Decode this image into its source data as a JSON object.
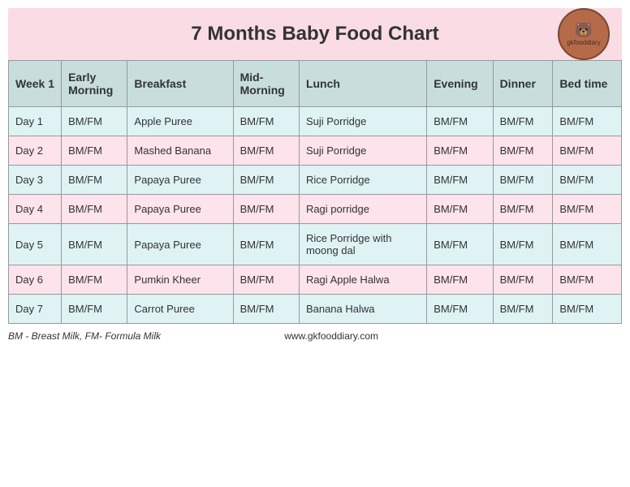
{
  "title": "7 Months Baby Food Chart",
  "logo": {
    "brand": "gkfooddiary",
    "bear": "🐻"
  },
  "columns": [
    "Week 1",
    "Early Morning",
    "Breakfast",
    "Mid-Morning",
    "Lunch",
    "Evening",
    "Dinner",
    "Bed time"
  ],
  "rows": [
    {
      "day": "Day 1",
      "early": "BM/FM",
      "breakfast": "Apple Puree",
      "mid": "BM/FM",
      "lunch": "Suji Porridge",
      "evening": "BM/FM",
      "dinner": "BM/FM",
      "bed": "BM/FM"
    },
    {
      "day": "Day 2",
      "early": "BM/FM",
      "breakfast": "Mashed Banana",
      "mid": "BM/FM",
      "lunch": "Suji Porridge",
      "evening": "BM/FM",
      "dinner": "BM/FM",
      "bed": "BM/FM"
    },
    {
      "day": "Day 3",
      "early": "BM/FM",
      "breakfast": "Papaya Puree",
      "mid": "BM/FM",
      "lunch": "Rice Porridge",
      "evening": "BM/FM",
      "dinner": "BM/FM",
      "bed": "BM/FM"
    },
    {
      "day": "Day 4",
      "early": "BM/FM",
      "breakfast": "Papaya Puree",
      "mid": "BM/FM",
      "lunch": "Ragi porridge",
      "evening": "BM/FM",
      "dinner": "BM/FM",
      "bed": "BM/FM"
    },
    {
      "day": "Day 5",
      "early": "BM/FM",
      "breakfast": "Papaya Puree",
      "mid": "BM/FM",
      "lunch": "Rice Porridge with moong dal",
      "evening": "BM/FM",
      "dinner": "BM/FM",
      "bed": "BM/FM"
    },
    {
      "day": "Day 6",
      "early": "BM/FM",
      "breakfast": "Pumkin Kheer",
      "mid": "BM/FM",
      "lunch": "Ragi Apple Halwa",
      "evening": "BM/FM",
      "dinner": "BM/FM",
      "bed": "BM/FM"
    },
    {
      "day": "Day 7",
      "early": "BM/FM",
      "breakfast": "Carrot Puree",
      "mid": "BM/FM",
      "lunch": "Banana Halwa",
      "evening": "BM/FM",
      "dinner": "BM/FM",
      "bed": "BM/FM"
    }
  ],
  "footer": {
    "legend": "BM - Breast Milk, FM- Formula Milk",
    "website": "www.gkfooddiary.com"
  },
  "styling": {
    "header_bg": "#fadce5",
    "table_header_bg": "#c7dedd",
    "row_blue_bg": "#dff3f5",
    "row_pink_bg": "#fce3ec",
    "border_color": "#999999",
    "title_fontsize": 24,
    "header_fontsize": 14,
    "cell_fontsize": 13,
    "footer_fontsize": 12
  }
}
